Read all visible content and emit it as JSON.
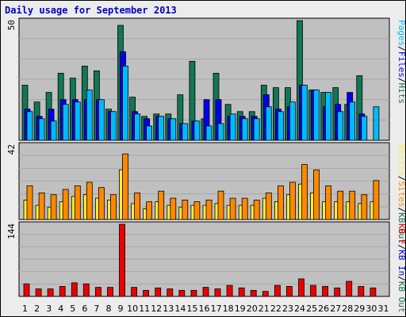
{
  "title": "Daily usage for September 2013",
  "colors": {
    "hits": "#117755",
    "files": "#0000ee",
    "pages": "#00bbff",
    "visits": "#ffee33",
    "sites": "#ff8800",
    "kbytes": "#ee0000",
    "weekend_day": "#117755",
    "weekday": "#000000"
  },
  "chart_data": [
    {
      "type": "bar",
      "name": "usage",
      "ymax_label": "50",
      "ylim": [
        0,
        50
      ],
      "legend": [
        {
          "text": "Pages",
          "color": "#00bbff"
        },
        {
          "text": "/",
          "color": "#000000"
        },
        {
          "text": "Files",
          "color": "#0000ee"
        },
        {
          "text": "/",
          "color": "#000000"
        },
        {
          "text": "Hits",
          "color": "#117755"
        }
      ],
      "series": [
        {
          "name": "Hits",
          "values": [
            23,
            16,
            20,
            28,
            26,
            31,
            29,
            13,
            48,
            18,
            10,
            11,
            11,
            19,
            33,
            9,
            28,
            15,
            12,
            12,
            23,
            22,
            22,
            50,
            21,
            20,
            22,
            15,
            27,
            0
          ]
        },
        {
          "name": "Files",
          "values": [
            13,
            10,
            13,
            17,
            17,
            17,
            17,
            12,
            37,
            12,
            9,
            10,
            9,
            7,
            8,
            17,
            17,
            10,
            10,
            10,
            19,
            13,
            14,
            23,
            21,
            14,
            15,
            20,
            11,
            0
          ]
        },
        {
          "name": "Pages",
          "values": [
            12,
            9,
            8,
            15,
            16,
            21,
            17,
            12,
            31,
            11,
            6,
            10,
            9,
            7,
            8,
            6,
            7,
            11,
            9,
            9,
            14,
            12,
            16,
            23,
            21,
            20,
            12,
            16,
            10,
            14
          ]
        }
      ]
    },
    {
      "type": "bar",
      "name": "visits",
      "ymax_label": "42",
      "ylim": [
        0,
        42
      ],
      "legend": [
        {
          "text": "Visits",
          "color": "#ffee33"
        },
        {
          "text": "/",
          "color": "#000000"
        },
        {
          "text": "Sites",
          "color": "#ff8800"
        },
        {
          "text": "/",
          "color": "#000000"
        },
        {
          "text": "KB Out",
          "color": "#117755"
        }
      ],
      "series": [
        {
          "name": "Visits",
          "values": [
            11,
            8,
            7,
            10,
            13,
            14,
            12,
            11,
            28,
            9,
            6,
            10,
            8,
            7,
            8,
            8,
            9,
            8,
            8,
            8,
            12,
            10,
            14,
            20,
            15,
            10,
            10,
            10,
            9,
            10
          ]
        },
        {
          "name": "Sites",
          "values": [
            19,
            15,
            14,
            17,
            19,
            21,
            18,
            14,
            37,
            15,
            10,
            16,
            12,
            11,
            10,
            11,
            16,
            12,
            12,
            11,
            15,
            19,
            21,
            31,
            28,
            19,
            16,
            16,
            14,
            22
          ]
        }
      ]
    },
    {
      "type": "bar",
      "name": "kbytes",
      "ymax_label": "144",
      "ylim": [
        0,
        144
      ],
      "legend": [
        {
          "text": "KB F",
          "color": "#ee0000"
        },
        {
          "text": "/",
          "color": "#000000"
        },
        {
          "text": "KB In",
          "color": "#0000ee"
        },
        {
          "text": "/",
          "color": "#000000"
        },
        {
          "text": "KB Out",
          "color": "#117755"
        }
      ],
      "series": [
        {
          "name": "KB F",
          "values": [
            25,
            15,
            15,
            20,
            27,
            25,
            18,
            18,
            144,
            18,
            12,
            17,
            15,
            12,
            12,
            18,
            15,
            22,
            17,
            12,
            10,
            22,
            20,
            35,
            22,
            20,
            17,
            30,
            20,
            17
          ]
        }
      ]
    }
  ],
  "days": [
    {
      "label": "1",
      "weekend": true
    },
    {
      "label": "2",
      "weekend": false
    },
    {
      "label": "3",
      "weekend": false
    },
    {
      "label": "4",
      "weekend": false
    },
    {
      "label": "5",
      "weekend": false
    },
    {
      "label": "6",
      "weekend": false
    },
    {
      "label": "7",
      "weekend": true
    },
    {
      "label": "8",
      "weekend": true
    },
    {
      "label": "9",
      "weekend": false
    },
    {
      "label": "10",
      "weekend": false
    },
    {
      "label": "11",
      "weekend": false
    },
    {
      "label": "12",
      "weekend": false
    },
    {
      "label": "13",
      "weekend": false
    },
    {
      "label": "14",
      "weekend": true
    },
    {
      "label": "15",
      "weekend": true
    },
    {
      "label": "16",
      "weekend": false
    },
    {
      "label": "17",
      "weekend": false
    },
    {
      "label": "18",
      "weekend": false
    },
    {
      "label": "19",
      "weekend": false
    },
    {
      "label": "20",
      "weekend": false
    },
    {
      "label": "21",
      "weekend": true
    },
    {
      "label": "22",
      "weekend": true
    },
    {
      "label": "23",
      "weekend": false
    },
    {
      "label": "24",
      "weekend": false
    },
    {
      "label": "25",
      "weekend": false
    },
    {
      "label": "26",
      "weekend": false
    },
    {
      "label": "27",
      "weekend": false
    },
    {
      "label": "28",
      "weekend": true
    },
    {
      "label": "29",
      "weekend": true
    },
    {
      "label": "30",
      "weekend": false
    },
    {
      "label": "31",
      "weekend": false
    }
  ]
}
